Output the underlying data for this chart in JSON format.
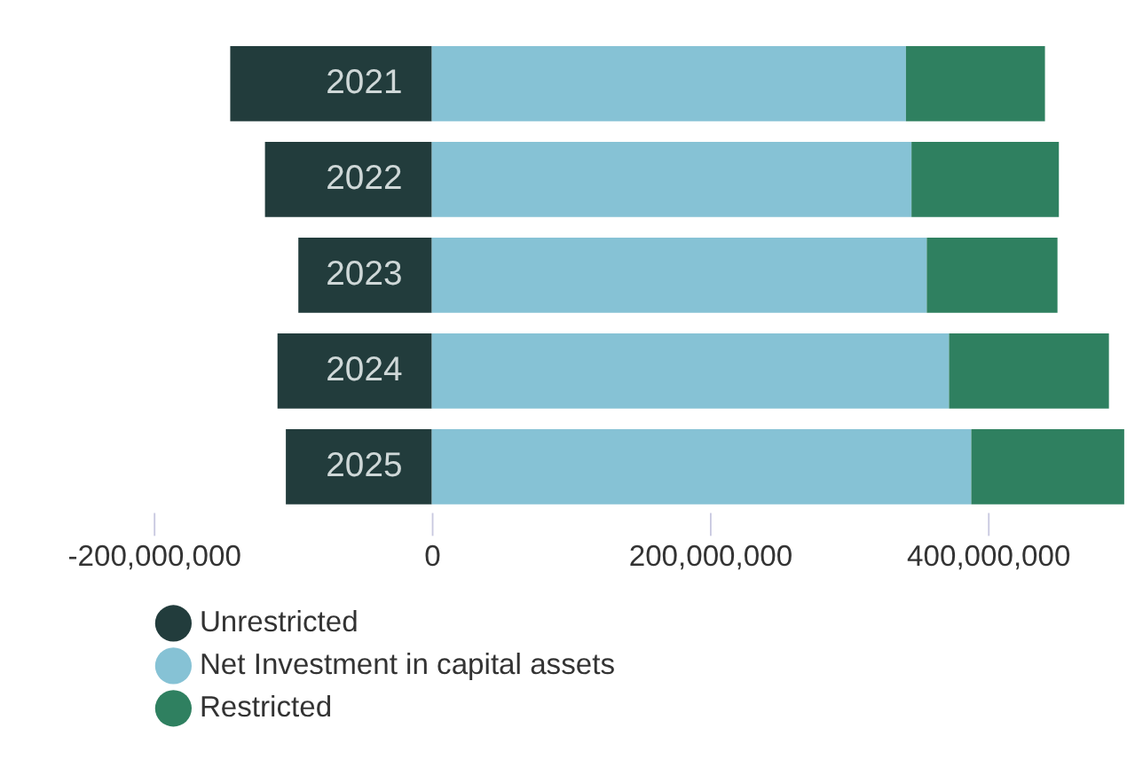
{
  "chart_data": {
    "type": "bar",
    "orientation": "horizontal",
    "stacked": true,
    "categories": [
      "2021",
      "2022",
      "2023",
      "2024",
      "2025"
    ],
    "series": [
      {
        "name": "Unrestricted",
        "color": "#223c3c",
        "values": [
          -145000000,
          -120000000,
          -96000000,
          -111000000,
          -105000000
        ]
      },
      {
        "name": "Net Investment in capital assets",
        "color": "#86c2d5",
        "values": [
          341000000,
          345000000,
          356000000,
          372000000,
          388000000
        ]
      },
      {
        "name": "Restricted",
        "color": "#2f8060",
        "values": [
          100000000,
          106000000,
          94000000,
          115000000,
          110000000
        ]
      }
    ],
    "xlim": [
      -200000000,
      500000000
    ],
    "xticks": [
      {
        "value": -200000000,
        "label": "-200,000,000"
      },
      0,
      {
        "value": 200000000,
        "label": "200,000,000"
      },
      {
        "value": 400000000,
        "label": "400,000,000"
      }
    ],
    "grid": false,
    "legend": "bottom",
    "tick_labels": "x"
  }
}
